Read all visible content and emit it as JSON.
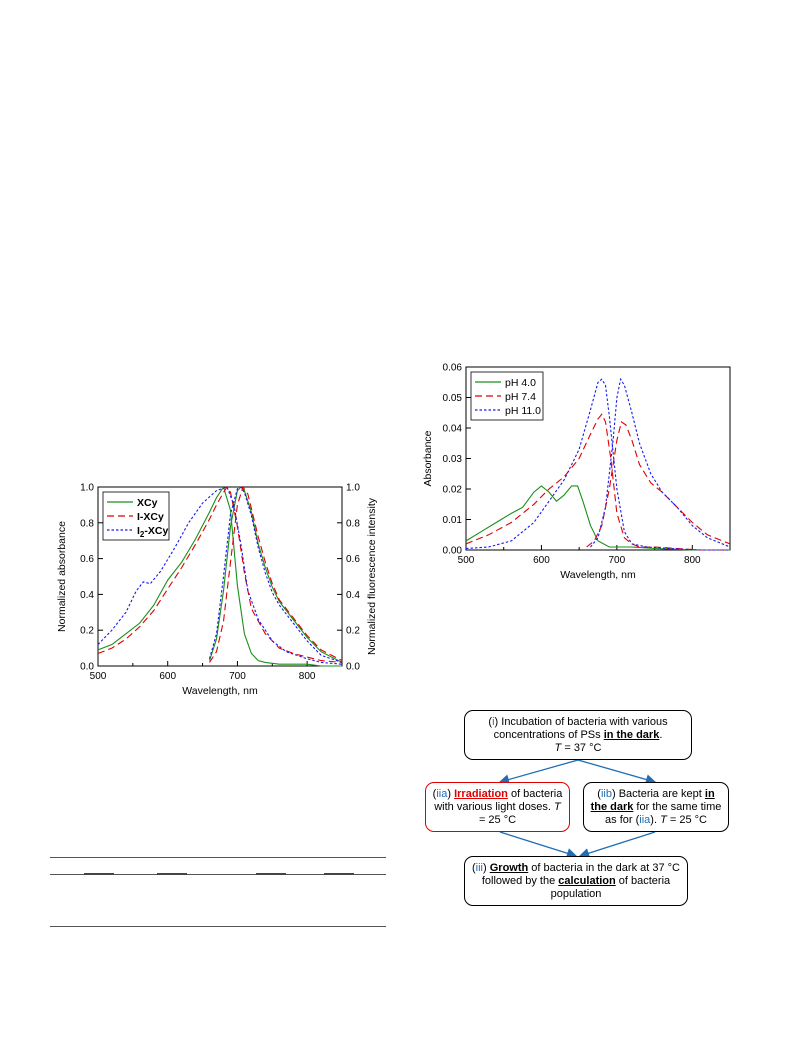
{
  "chart_data": [
    {
      "type": "line",
      "title": "",
      "xlabel": "Wavelength, nm",
      "ylabel": "Normalized absorbance",
      "y2label": "Normalized fluorescence intensity",
      "xlim": [
        500,
        850
      ],
      "ylim": [
        0,
        1.0
      ],
      "y2lim": [
        0,
        1.0
      ],
      "xticks": [
        "500",
        "600",
        "700",
        "800"
      ],
      "yticks": [
        "0.0",
        "0.2",
        "0.4",
        "0.6",
        "0.8",
        "1.0"
      ],
      "y2ticks": [
        "0.0",
        "0.2",
        "0.4",
        "0.6",
        "0.8",
        "1.0"
      ],
      "legend_position": "top-left",
      "legend": [
        {
          "name_main": "XCy",
          "name_sub": "",
          "name_tail": "",
          "color": "#1a8f1a",
          "dash": "solid"
        },
        {
          "name_main": "I-XCy",
          "name_sub": "",
          "name_tail": "",
          "color": "#e00000",
          "dash": "dashed"
        },
        {
          "name_main": "I",
          "name_sub": "2",
          "name_tail": "-XCy",
          "color": "#1a1aee",
          "dash": "dotted"
        }
      ],
      "series": [
        {
          "legend_index": 0,
          "kind": "absorbance",
          "color": "#1a8f1a",
          "dash": "solid",
          "x": [
            500,
            520,
            540,
            560,
            580,
            600,
            620,
            640,
            660,
            670,
            680,
            690,
            700,
            710,
            720,
            730,
            740,
            760,
            780,
            800,
            820,
            850
          ],
          "y": [
            0.09,
            0.12,
            0.18,
            0.24,
            0.34,
            0.48,
            0.58,
            0.71,
            0.86,
            0.94,
            1.0,
            0.87,
            0.45,
            0.18,
            0.07,
            0.03,
            0.02,
            0.01,
            0.01,
            0.01,
            0.0,
            0.0
          ]
        },
        {
          "legend_index": 0,
          "kind": "fluorescence",
          "color": "#1a8f1a",
          "dash": "solid",
          "x": [
            660,
            670,
            680,
            690,
            700,
            705,
            710,
            720,
            730,
            740,
            750,
            760,
            780,
            800,
            820,
            850
          ],
          "y": [
            0.03,
            0.15,
            0.42,
            0.78,
            0.98,
            1.0,
            0.98,
            0.86,
            0.68,
            0.55,
            0.44,
            0.36,
            0.26,
            0.16,
            0.08,
            0.02
          ]
        },
        {
          "legend_index": 1,
          "kind": "absorbance",
          "color": "#e00000",
          "dash": "dashed",
          "x": [
            500,
            520,
            540,
            560,
            580,
            600,
            620,
            640,
            660,
            670,
            680,
            685,
            690,
            700,
            710,
            720,
            740,
            760,
            780,
            800,
            820,
            850
          ],
          "y": [
            0.07,
            0.1,
            0.15,
            0.22,
            0.31,
            0.43,
            0.55,
            0.68,
            0.82,
            0.9,
            0.97,
            1.0,
            0.97,
            0.78,
            0.52,
            0.32,
            0.18,
            0.1,
            0.07,
            0.05,
            0.03,
            0.02
          ]
        },
        {
          "legend_index": 1,
          "kind": "fluorescence",
          "color": "#e00000",
          "dash": "dashed",
          "x": [
            660,
            670,
            680,
            690,
            700,
            708,
            715,
            720,
            730,
            740,
            750,
            760,
            780,
            800,
            820,
            850
          ],
          "y": [
            0.02,
            0.08,
            0.25,
            0.58,
            0.9,
            1.0,
            0.96,
            0.88,
            0.72,
            0.58,
            0.46,
            0.37,
            0.27,
            0.17,
            0.09,
            0.03
          ]
        },
        {
          "legend_index": 2,
          "kind": "absorbance",
          "color": "#1a1aee",
          "dash": "dotted",
          "x": [
            500,
            520,
            540,
            555,
            565,
            575,
            590,
            610,
            630,
            650,
            670,
            685,
            695,
            705,
            715,
            730,
            750,
            770,
            800,
            820,
            850
          ],
          "y": [
            0.12,
            0.2,
            0.3,
            0.42,
            0.47,
            0.46,
            0.53,
            0.66,
            0.8,
            0.91,
            0.98,
            1.0,
            0.9,
            0.68,
            0.42,
            0.26,
            0.14,
            0.08,
            0.04,
            0.02,
            0.01
          ]
        },
        {
          "legend_index": 2,
          "kind": "fluorescence",
          "color": "#1a1aee",
          "dash": "dotted",
          "x": [
            660,
            670,
            680,
            690,
            700,
            705,
            710,
            720,
            730,
            740,
            750,
            760,
            780,
            800,
            820,
            850
          ],
          "y": [
            0.04,
            0.18,
            0.5,
            0.85,
            0.99,
            1.0,
            0.97,
            0.84,
            0.66,
            0.52,
            0.41,
            0.34,
            0.24,
            0.14,
            0.06,
            0.02
          ]
        }
      ]
    },
    {
      "type": "line",
      "title": "",
      "xlabel": "Wavelength, nm",
      "ylabel": "Absorbance",
      "xlim": [
        500,
        850
      ],
      "ylim": [
        0,
        0.06
      ],
      "xticks": [
        "500",
        "600",
        "700",
        "800"
      ],
      "yticks": [
        "0.00",
        "0.01",
        "0.02",
        "0.03",
        "0.04",
        "0.05",
        "0.06"
      ],
      "legend_position": "top-left",
      "legend": [
        {
          "name": "pH 4.0",
          "color": "#1a8f1a",
          "dash": "solid"
        },
        {
          "name": "pH 7.4",
          "color": "#e00000",
          "dash": "dashed"
        },
        {
          "name": "pH 11.0",
          "color": "#1a1aee",
          "dash": "dotted"
        }
      ],
      "series": [
        {
          "legend_index": 0,
          "color": "#1a8f1a",
          "dash": "solid",
          "x": [
            500,
            520,
            540,
            560,
            575,
            590,
            600,
            610,
            620,
            630,
            640,
            648,
            655,
            665,
            675,
            690,
            700,
            720,
            750,
            800,
            850
          ],
          "y": [
            0.003,
            0.006,
            0.009,
            0.012,
            0.014,
            0.019,
            0.021,
            0.019,
            0.016,
            0.018,
            0.021,
            0.021,
            0.016,
            0.008,
            0.003,
            0.001,
            0.001,
            0.001,
            0.0005,
            0.0,
            0.0
          ]
        },
        {
          "legend_index": 1,
          "color": "#e00000",
          "dash": "dashed",
          "x": [
            500,
            530,
            560,
            590,
            610,
            630,
            650,
            665,
            675,
            680,
            685,
            692,
            700,
            710,
            720,
            730,
            750,
            780,
            810,
            850
          ],
          "y": [
            0.002,
            0.005,
            0.009,
            0.015,
            0.02,
            0.024,
            0.03,
            0.038,
            0.043,
            0.0445,
            0.042,
            0.03,
            0.012,
            0.004,
            0.002,
            0.001,
            0.001,
            0.0005,
            0.0,
            0.0
          ]
        },
        {
          "legend_index": 1,
          "color": "#e00000",
          "dash": "dashed",
          "x": [
            660,
            670,
            680,
            690,
            700,
            706,
            712,
            720,
            730,
            745,
            760,
            780,
            800,
            820,
            850
          ],
          "y": [
            0.001,
            0.003,
            0.008,
            0.02,
            0.036,
            0.042,
            0.041,
            0.036,
            0.028,
            0.022,
            0.019,
            0.014,
            0.009,
            0.005,
            0.002
          ]
        },
        {
          "legend_index": 2,
          "color": "#1a1aee",
          "dash": "dotted",
          "x": [
            500,
            530,
            560,
            590,
            610,
            630,
            650,
            665,
            675,
            680,
            685,
            690,
            700,
            710,
            720,
            740,
            770,
            810,
            850
          ],
          "y": [
            0.0005,
            0.001,
            0.003,
            0.009,
            0.016,
            0.023,
            0.033,
            0.046,
            0.055,
            0.056,
            0.054,
            0.044,
            0.02,
            0.006,
            0.002,
            0.001,
            0.0005,
            0.0,
            0.0
          ]
        },
        {
          "legend_index": 2,
          "color": "#1a1aee",
          "dash": "dotted",
          "x": [
            665,
            675,
            685,
            695,
            700,
            705,
            710,
            720,
            730,
            745,
            760,
            780,
            800,
            820,
            850
          ],
          "y": [
            0.001,
            0.004,
            0.014,
            0.036,
            0.05,
            0.056,
            0.054,
            0.045,
            0.035,
            0.025,
            0.019,
            0.014,
            0.008,
            0.004,
            0.001
          ]
        }
      ]
    }
  ],
  "scheme": {
    "step_i": {
      "tag": "i",
      "text_a": " Incubation of bacteria with various concentrations of PSs ",
      "bold": "in the dark",
      "text_b": ".",
      "temp_var": "T",
      "temp_val": " = 37 °C"
    },
    "step_iia": {
      "tag": "iia",
      "bold": "Irradiation",
      "text": " of bacteria with various light doses. ",
      "temp_var": "T",
      "temp_val": " = 25 °C"
    },
    "step_iib": {
      "tag": "iib",
      "text_a": " Bacteria are kept ",
      "bold": "in the dark",
      "text_b": " for the same time as for (",
      "ref": "iia",
      "text_c": "). ",
      "temp_var": "T",
      "temp_val": " = 25 °C"
    },
    "step_iii": {
      "tag": "iii",
      "bold1": "Growth",
      "text_a": " of bacteria in the dark at 37 °C followed by the ",
      "bold2": "calculation",
      "text_b": " of bacteria population"
    }
  }
}
